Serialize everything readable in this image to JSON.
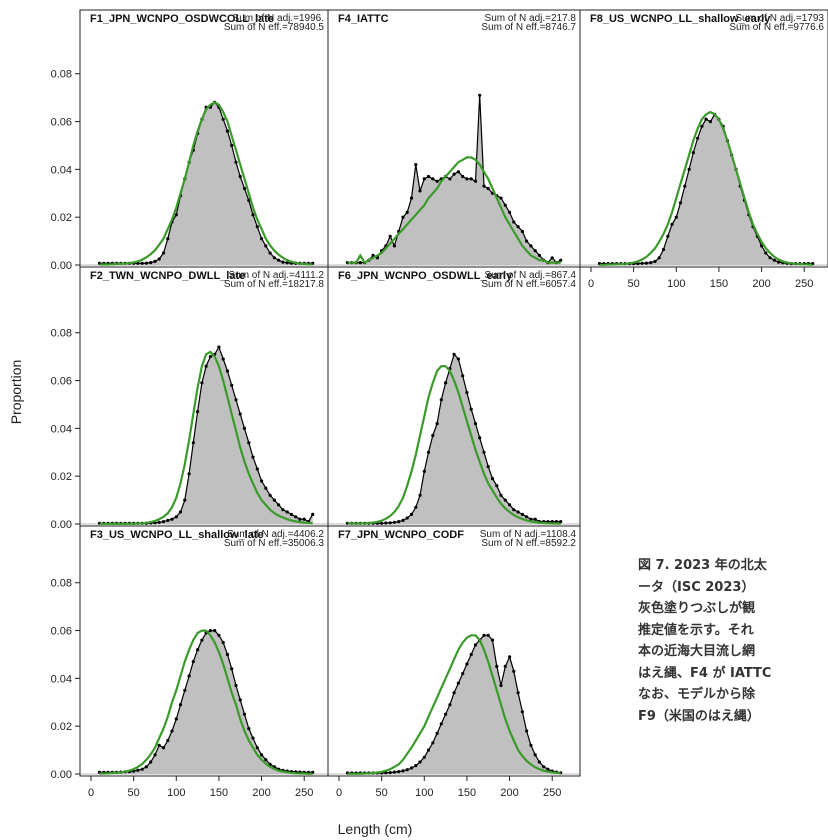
{
  "figure": {
    "ylabel": "Proportion",
    "xlabel": "Length (cm)",
    "y_ticks": [
      "0.00",
      "0.02",
      "0.04",
      "0.06",
      "0.08"
    ],
    "x_ticks": [
      "0",
      "50",
      "100",
      "150",
      "200",
      "250"
    ],
    "colors": {
      "observed_fill": "#c0c0c0",
      "observed_line": "#000000",
      "expected_line": "#3a9a2a"
    }
  },
  "caption": {
    "lines": [
      "図 7. 2023 年の北太",
      "ータ（ISC 2023）",
      "灰色塗りつぶしが観",
      "推定値を示す。それ",
      "本の近海大目流し網",
      "はえ縄、F4 が IATTC",
      "なお、モデルから除",
      "F9（米国のはえ縄）"
    ]
  },
  "chart_data": [
    {
      "type": "area",
      "title": "F1_JPN_WCNPO_OSDWCOLL_late",
      "notes": [
        "Sum of N adj.=1996.",
        "Sum of N eff.=78940.5"
      ],
      "ylim": [
        0,
        0.087
      ],
      "xlim": [
        0,
        265
      ],
      "x": [
        10,
        15,
        20,
        25,
        30,
        35,
        40,
        45,
        50,
        55,
        60,
        65,
        70,
        75,
        80,
        85,
        90,
        95,
        100,
        105,
        110,
        115,
        120,
        125,
        130,
        135,
        140,
        145,
        150,
        155,
        160,
        165,
        170,
        175,
        180,
        185,
        190,
        195,
        200,
        205,
        210,
        215,
        220,
        225,
        230,
        235,
        240,
        245,
        250,
        255,
        260
      ],
      "observed": [
        0.0007,
        0.0007,
        0.0007,
        0.0007,
        0.0007,
        0.0007,
        0.0007,
        0.0007,
        0.0007,
        0.0007,
        0.0007,
        0.0008,
        0.001,
        0.0015,
        0.0025,
        0.005,
        0.011,
        0.018,
        0.021,
        0.029,
        0.036,
        0.043,
        0.048,
        0.055,
        0.061,
        0.066,
        0.066,
        0.068,
        0.066,
        0.061,
        0.056,
        0.05,
        0.043,
        0.037,
        0.032,
        0.027,
        0.021,
        0.016,
        0.011,
        0.008,
        0.005,
        0.003,
        0.002,
        0.0012,
        0.0009,
        0.0008,
        0.0007,
        0.0007,
        0.0007,
        0.0007,
        0.0007
      ],
      "expected": [
        0.0002,
        0.0002,
        0.0002,
        0.0003,
        0.0004,
        0.0005,
        0.0006,
        0.0008,
        0.0011,
        0.0015,
        0.0022,
        0.0032,
        0.0045,
        0.0062,
        0.0085,
        0.011,
        0.015,
        0.019,
        0.024,
        0.03,
        0.036,
        0.043,
        0.05,
        0.056,
        0.061,
        0.065,
        0.067,
        0.068,
        0.067,
        0.064,
        0.06,
        0.054,
        0.048,
        0.042,
        0.036,
        0.03,
        0.024,
        0.019,
        0.015,
        0.011,
        0.0082,
        0.006,
        0.0043,
        0.003,
        0.002,
        0.0014,
        0.0009,
        0.0006,
        0.0004,
        0.0003,
        0.0002
      ]
    },
    {
      "type": "area",
      "title": "F4_IATTC",
      "notes": [
        "Sum of N adj.=217.8",
        "Sum of N eff.=8746.7"
      ],
      "ylim": [
        0,
        0.087
      ],
      "xlim": [
        0,
        265
      ],
      "x": [
        10,
        15,
        20,
        25,
        30,
        35,
        40,
        45,
        50,
        55,
        60,
        65,
        70,
        75,
        80,
        85,
        90,
        95,
        100,
        105,
        110,
        115,
        120,
        125,
        130,
        135,
        140,
        145,
        150,
        155,
        160,
        165,
        170,
        175,
        180,
        185,
        190,
        195,
        200,
        205,
        210,
        215,
        220,
        225,
        230,
        235,
        240,
        245,
        250,
        255,
        260
      ],
      "observed": [
        0.001,
        0.001,
        0.001,
        0.001,
        0.001,
        0.002,
        0.004,
        0.003,
        0.006,
        0.008,
        0.012,
        0.008,
        0.014,
        0.02,
        0.022,
        0.028,
        0.042,
        0.031,
        0.036,
        0.037,
        0.036,
        0.035,
        0.036,
        0.037,
        0.036,
        0.038,
        0.039,
        0.037,
        0.036,
        0.036,
        0.035,
        0.071,
        0.033,
        0.032,
        0.03,
        0.029,
        0.028,
        0.025,
        0.022,
        0.018,
        0.016,
        0.014,
        0.01,
        0.008,
        0.006,
        0.004,
        0.002,
        0.001,
        0.003,
        0.001,
        0.002
      ],
      "expected": [
        0.001,
        0.001,
        0.001,
        0.004,
        0.001,
        0.002,
        0.003,
        0.004,
        0.005,
        0.007,
        0.009,
        0.011,
        0.013,
        0.015,
        0.017,
        0.019,
        0.021,
        0.023,
        0.025,
        0.028,
        0.03,
        0.032,
        0.035,
        0.037,
        0.039,
        0.041,
        0.043,
        0.044,
        0.045,
        0.045,
        0.044,
        0.042,
        0.039,
        0.036,
        0.032,
        0.028,
        0.024,
        0.02,
        0.017,
        0.014,
        0.011,
        0.008,
        0.006,
        0.004,
        0.003,
        0.002,
        0.002,
        0.001,
        0.001,
        0.001,
        0.001
      ]
    },
    {
      "type": "area",
      "title": "F8_US_WCNPO_LL_shallow_early",
      "notes": [
        "Sum of N adj.=1793",
        "Sum of N eff.=9776.6"
      ],
      "ylim": [
        0,
        0.087
      ],
      "xlim": [
        0,
        265
      ],
      "x": [
        10,
        15,
        20,
        25,
        30,
        35,
        40,
        45,
        50,
        55,
        60,
        65,
        70,
        75,
        80,
        85,
        90,
        95,
        100,
        105,
        110,
        115,
        120,
        125,
        130,
        135,
        140,
        145,
        150,
        155,
        160,
        165,
        170,
        175,
        180,
        185,
        190,
        195,
        200,
        205,
        210,
        215,
        220,
        225,
        230,
        235,
        240,
        245,
        250,
        255,
        260
      ],
      "observed": [
        0.0006,
        0.0006,
        0.0006,
        0.0006,
        0.0006,
        0.0006,
        0.0006,
        0.0006,
        0.0006,
        0.0006,
        0.0007,
        0.0008,
        0.001,
        0.0015,
        0.003,
        0.0065,
        0.012,
        0.017,
        0.02,
        0.026,
        0.033,
        0.04,
        0.047,
        0.053,
        0.058,
        0.061,
        0.06,
        0.063,
        0.061,
        0.058,
        0.052,
        0.046,
        0.04,
        0.033,
        0.027,
        0.021,
        0.016,
        0.012,
        0.008,
        0.005,
        0.003,
        0.002,
        0.0012,
        0.0009,
        0.0007,
        0.0006,
        0.0006,
        0.0006,
        0.0006,
        0.0006,
        0.0006
      ],
      "expected": [
        0.0001,
        0.0001,
        0.0002,
        0.0002,
        0.0003,
        0.0004,
        0.0005,
        0.0007,
        0.001,
        0.0015,
        0.0023,
        0.0034,
        0.005,
        0.007,
        0.0097,
        0.013,
        0.017,
        0.022,
        0.028,
        0.034,
        0.04,
        0.046,
        0.052,
        0.057,
        0.061,
        0.063,
        0.064,
        0.063,
        0.061,
        0.057,
        0.052,
        0.046,
        0.04,
        0.034,
        0.028,
        0.022,
        0.017,
        0.013,
        0.0097,
        0.007,
        0.005,
        0.0034,
        0.0023,
        0.0015,
        0.001,
        0.0007,
        0.0005,
        0.0004,
        0.0003,
        0.0002,
        0.0001
      ]
    },
    {
      "type": "area",
      "title": "F2_TWN_WCNPO_DWLL_late",
      "notes": [
        "Sum of N adj.=4111.2",
        "Sum of N eff.=18217.8"
      ],
      "ylim": [
        0,
        0.087
      ],
      "xlim": [
        0,
        265
      ],
      "x": [
        10,
        15,
        20,
        25,
        30,
        35,
        40,
        45,
        50,
        55,
        60,
        65,
        70,
        75,
        80,
        85,
        90,
        95,
        100,
        105,
        110,
        115,
        120,
        125,
        130,
        135,
        140,
        145,
        150,
        155,
        160,
        165,
        170,
        175,
        180,
        185,
        190,
        195,
        200,
        205,
        210,
        215,
        220,
        225,
        230,
        235,
        240,
        245,
        250,
        255,
        260
      ],
      "observed": [
        0.0003,
        0.0003,
        0.0003,
        0.0003,
        0.0003,
        0.0003,
        0.0003,
        0.0003,
        0.0003,
        0.0003,
        0.0003,
        0.0003,
        0.0004,
        0.0005,
        0.0007,
        0.001,
        0.0015,
        0.002,
        0.003,
        0.005,
        0.01,
        0.021,
        0.034,
        0.047,
        0.059,
        0.066,
        0.07,
        0.071,
        0.074,
        0.069,
        0.064,
        0.058,
        0.052,
        0.046,
        0.04,
        0.034,
        0.028,
        0.023,
        0.018,
        0.015,
        0.012,
        0.01,
        0.008,
        0.006,
        0.005,
        0.004,
        0.003,
        0.002,
        0.002,
        0.001,
        0.004
      ],
      "expected": [
        0.0001,
        0.0001,
        0.0001,
        0.0001,
        0.0001,
        0.0001,
        0.0001,
        0.0001,
        0.0001,
        0.0002,
        0.0003,
        0.0005,
        0.0008,
        0.0013,
        0.002,
        0.003,
        0.0045,
        0.007,
        0.011,
        0.017,
        0.025,
        0.035,
        0.046,
        0.057,
        0.066,
        0.071,
        0.072,
        0.07,
        0.066,
        0.06,
        0.053,
        0.046,
        0.039,
        0.032,
        0.026,
        0.021,
        0.017,
        0.013,
        0.01,
        0.008,
        0.006,
        0.0045,
        0.0035,
        0.0027,
        0.002,
        0.0015,
        0.0011,
        0.0008,
        0.0006,
        0.0004,
        0.0003
      ]
    },
    {
      "type": "area",
      "title": "F6_JPN_WCNPO_OSDWLL_early",
      "notes": [
        "Sum of N adj.=867.4",
        "Sum of N eff.=6057.4"
      ],
      "ylim": [
        0,
        0.087
      ],
      "xlim": [
        0,
        265
      ],
      "x": [
        10,
        15,
        20,
        25,
        30,
        35,
        40,
        45,
        50,
        55,
        60,
        65,
        70,
        75,
        80,
        85,
        90,
        95,
        100,
        105,
        110,
        115,
        120,
        125,
        130,
        135,
        140,
        145,
        150,
        155,
        160,
        165,
        170,
        175,
        180,
        185,
        190,
        195,
        200,
        205,
        210,
        215,
        220,
        225,
        230,
        235,
        240,
        245,
        250,
        255,
        260
      ],
      "observed": [
        0.0003,
        0.0003,
        0.0003,
        0.0003,
        0.0003,
        0.0003,
        0.0003,
        0.0003,
        0.0003,
        0.0004,
        0.0005,
        0.0007,
        0.001,
        0.0015,
        0.0025,
        0.004,
        0.007,
        0.012,
        0.022,
        0.03,
        0.037,
        0.042,
        0.052,
        0.059,
        0.065,
        0.071,
        0.069,
        0.062,
        0.055,
        0.048,
        0.042,
        0.036,
        0.03,
        0.024,
        0.019,
        0.016,
        0.012,
        0.01,
        0.008,
        0.006,
        0.005,
        0.004,
        0.003,
        0.002,
        0.002,
        0.001,
        0.001,
        0.001,
        0.001,
        0.001,
        0.001
      ],
      "expected": [
        0.0002,
        0.0002,
        0.0002,
        0.0002,
        0.0003,
        0.0004,
        0.0006,
        0.0009,
        0.0014,
        0.0022,
        0.0034,
        0.005,
        0.0075,
        0.011,
        0.016,
        0.022,
        0.029,
        0.037,
        0.045,
        0.053,
        0.059,
        0.064,
        0.066,
        0.066,
        0.064,
        0.06,
        0.055,
        0.049,
        0.043,
        0.037,
        0.031,
        0.026,
        0.021,
        0.017,
        0.014,
        0.011,
        0.0085,
        0.0065,
        0.005,
        0.0038,
        0.0028,
        0.0021,
        0.0015,
        0.0011,
        0.0008,
        0.0006,
        0.0004,
        0.0003,
        0.0002,
        0.0002,
        0.0001
      ]
    },
    {
      "type": "area",
      "title": "F3_US_WCNPO_LL_shallow_late",
      "notes": [
        "Sum of N adj.=4406.2",
        "Sum of N eff.=35006.3"
      ],
      "ylim": [
        0,
        0.087
      ],
      "xlim": [
        0,
        265
      ],
      "x": [
        10,
        15,
        20,
        25,
        30,
        35,
        40,
        45,
        50,
        55,
        60,
        65,
        70,
        75,
        80,
        85,
        90,
        95,
        100,
        105,
        110,
        115,
        120,
        125,
        130,
        135,
        140,
        145,
        150,
        155,
        160,
        165,
        170,
        175,
        180,
        185,
        190,
        195,
        200,
        205,
        210,
        215,
        220,
        225,
        230,
        235,
        240,
        245,
        250,
        255,
        260
      ],
      "observed": [
        0.0007,
        0.0007,
        0.0007,
        0.0007,
        0.0007,
        0.0008,
        0.0009,
        0.001,
        0.0012,
        0.0016,
        0.002,
        0.003,
        0.005,
        0.008,
        0.012,
        0.011,
        0.014,
        0.018,
        0.023,
        0.029,
        0.035,
        0.041,
        0.047,
        0.052,
        0.056,
        0.059,
        0.06,
        0.06,
        0.058,
        0.055,
        0.05,
        0.044,
        0.037,
        0.031,
        0.025,
        0.019,
        0.015,
        0.011,
        0.008,
        0.006,
        0.004,
        0.003,
        0.002,
        0.0015,
        0.0012,
        0.001,
        0.0009,
        0.0008,
        0.0007,
        0.0007,
        0.0007
      ],
      "expected": [
        0.0002,
        0.0002,
        0.0003,
        0.0004,
        0.0005,
        0.0007,
        0.001,
        0.0014,
        0.002,
        0.003,
        0.0042,
        0.006,
        0.0082,
        0.011,
        0.015,
        0.019,
        0.024,
        0.03,
        0.035,
        0.041,
        0.047,
        0.052,
        0.056,
        0.059,
        0.06,
        0.06,
        0.058,
        0.055,
        0.051,
        0.046,
        0.04,
        0.034,
        0.029,
        0.023,
        0.018,
        0.014,
        0.011,
        0.008,
        0.006,
        0.0043,
        0.003,
        0.0021,
        0.0014,
        0.001,
        0.0007,
        0.0005,
        0.0003,
        0.0002,
        0.0002,
        0.0001,
        0.0001
      ]
    },
    {
      "type": "area",
      "title": "F7_JPN_WCNPO_CODF",
      "notes": [
        "Sum of N adj.=1108.4",
        "Sum of N eff.=8592.2"
      ],
      "ylim": [
        0,
        0.087
      ],
      "xlim": [
        0,
        265
      ],
      "x": [
        10,
        15,
        20,
        25,
        30,
        35,
        40,
        45,
        50,
        55,
        60,
        65,
        70,
        75,
        80,
        85,
        90,
        95,
        100,
        105,
        110,
        115,
        120,
        125,
        130,
        135,
        140,
        145,
        150,
        155,
        160,
        165,
        170,
        175,
        180,
        185,
        190,
        195,
        200,
        205,
        210,
        215,
        220,
        225,
        230,
        235,
        240,
        245,
        250,
        255,
        260
      ],
      "observed": [
        0.0004,
        0.0004,
        0.0004,
        0.0004,
        0.0004,
        0.0004,
        0.0004,
        0.0004,
        0.0004,
        0.0005,
        0.0006,
        0.0008,
        0.001,
        0.0013,
        0.0018,
        0.0025,
        0.0035,
        0.005,
        0.007,
        0.01,
        0.013,
        0.017,
        0.021,
        0.025,
        0.029,
        0.034,
        0.038,
        0.042,
        0.046,
        0.05,
        0.054,
        0.056,
        0.058,
        0.058,
        0.056,
        0.045,
        0.037,
        0.045,
        0.049,
        0.043,
        0.034,
        0.026,
        0.018,
        0.012,
        0.008,
        0.005,
        0.003,
        0.002,
        0.0012,
        0.0008,
        0.0005
      ],
      "expected": [
        0.0001,
        0.0001,
        0.0001,
        0.0001,
        0.0002,
        0.0003,
        0.0004,
        0.0006,
        0.0009,
        0.0014,
        0.002,
        0.003,
        0.004,
        0.006,
        0.0085,
        0.011,
        0.014,
        0.017,
        0.02,
        0.024,
        0.028,
        0.032,
        0.036,
        0.04,
        0.044,
        0.048,
        0.052,
        0.055,
        0.057,
        0.058,
        0.058,
        0.056,
        0.052,
        0.047,
        0.041,
        0.035,
        0.029,
        0.023,
        0.018,
        0.014,
        0.01,
        0.0075,
        0.0055,
        0.004,
        0.0028,
        0.002,
        0.0014,
        0.001,
        0.0007,
        0.0005,
        0.0003
      ]
    }
  ]
}
